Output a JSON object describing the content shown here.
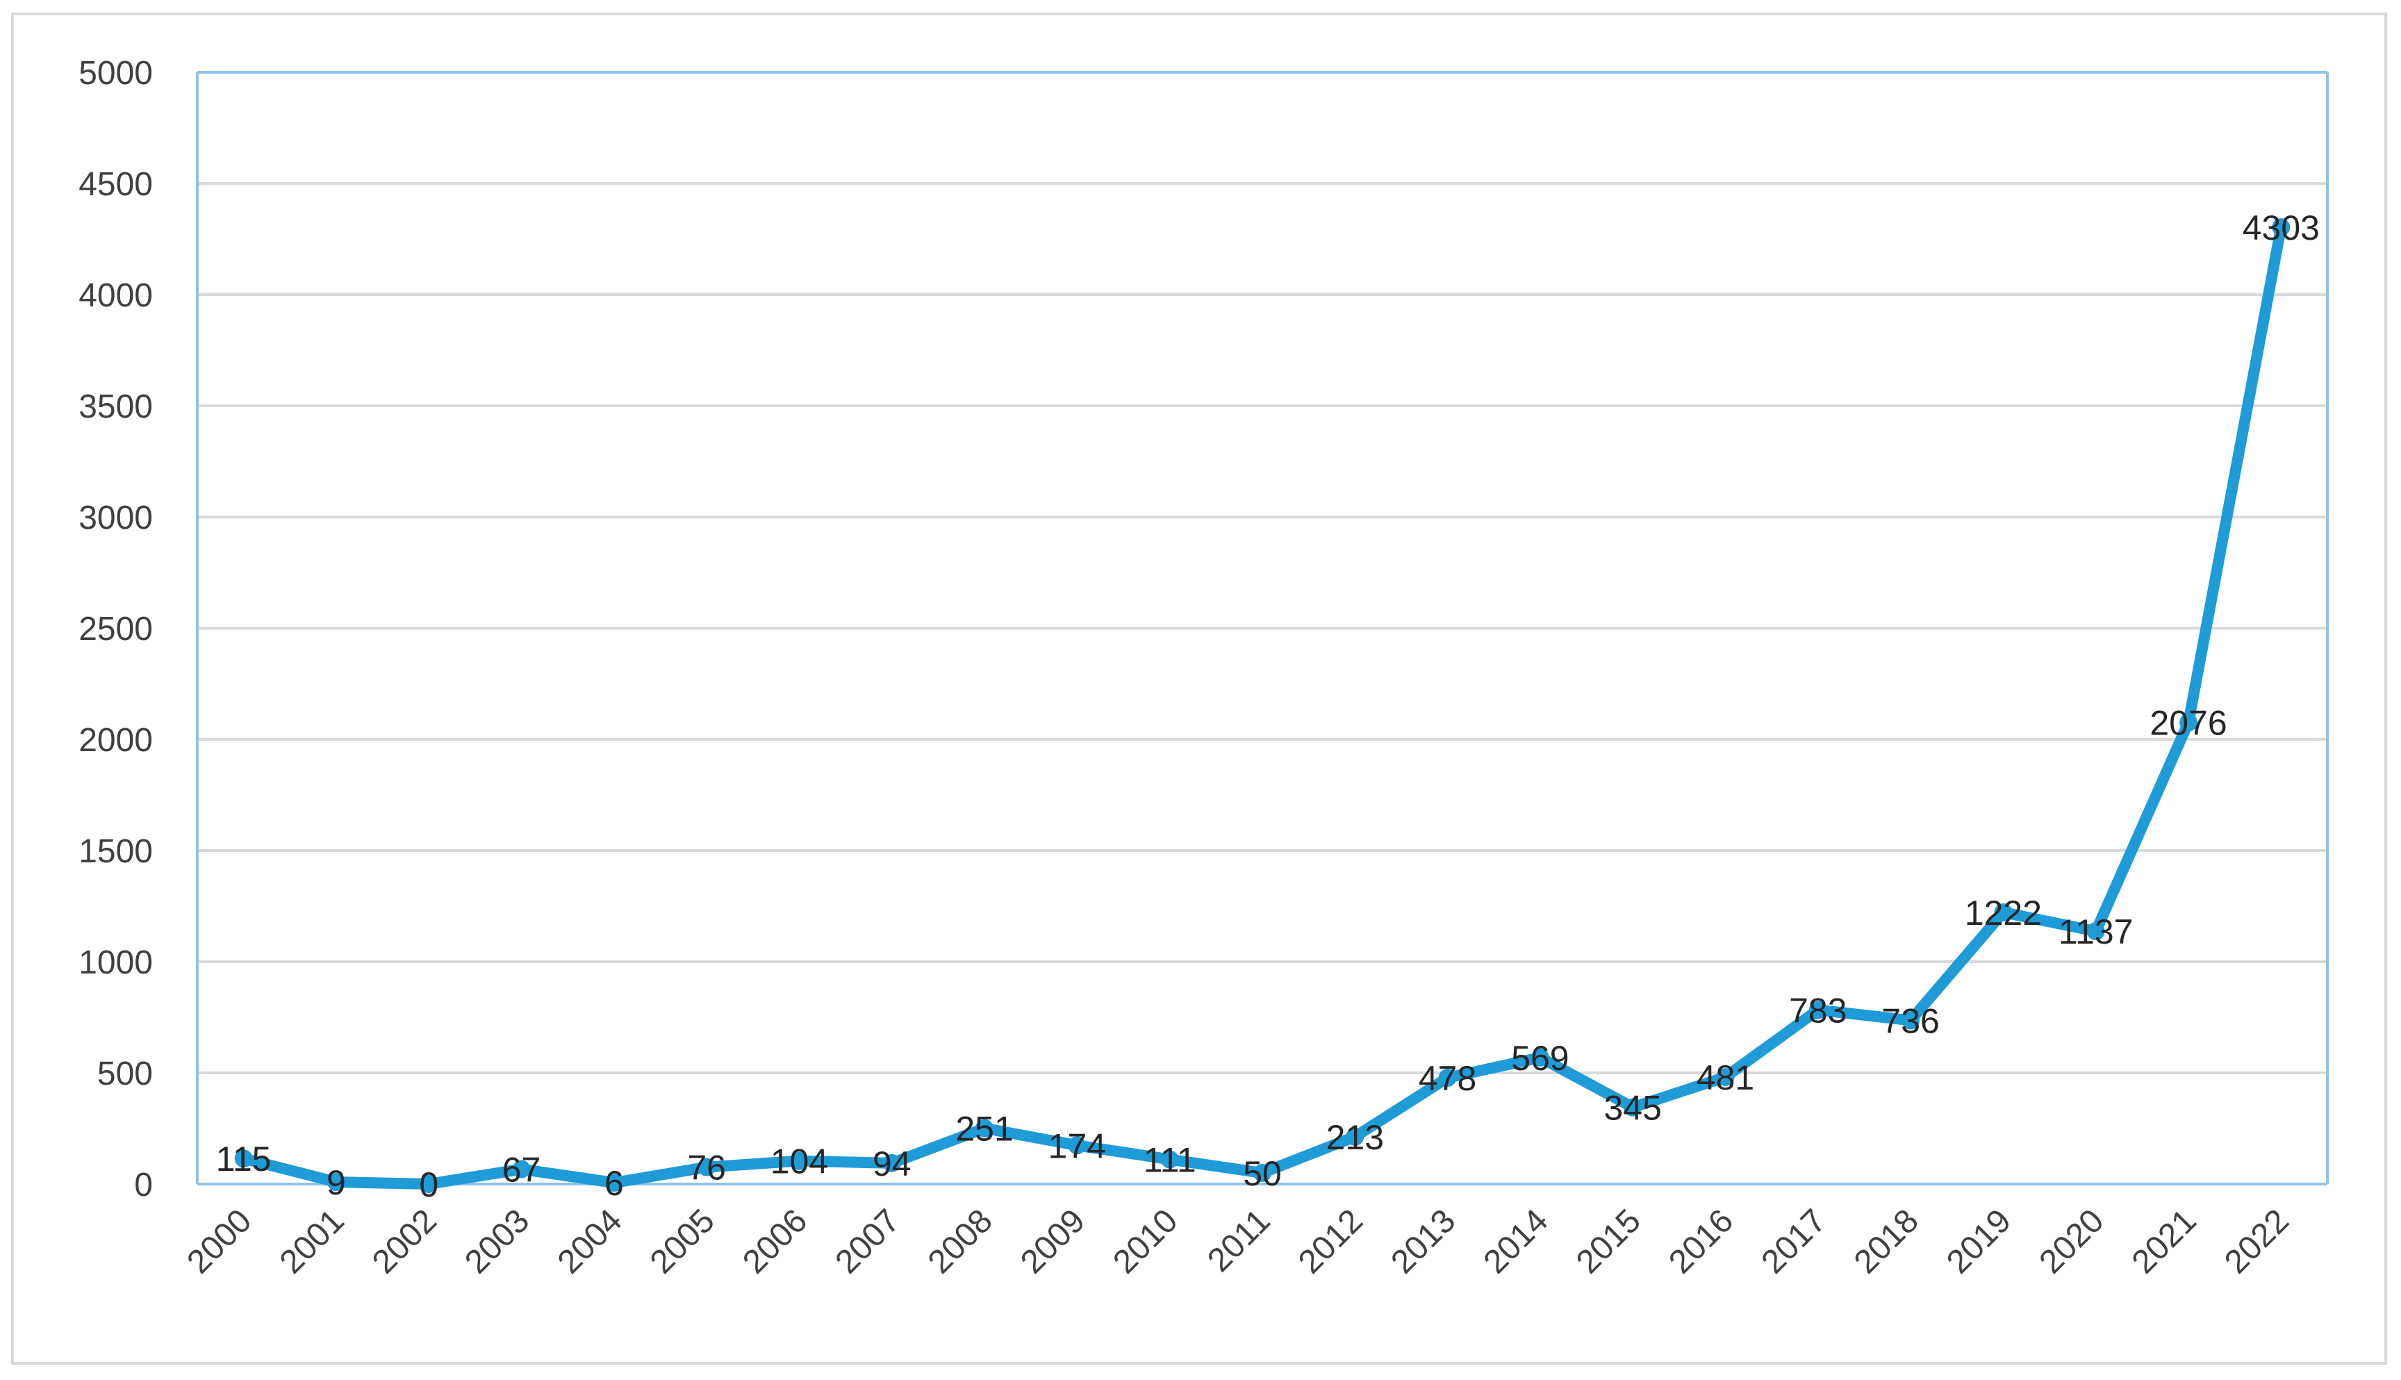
{
  "chart_data": {
    "type": "line",
    "title": "",
    "xlabel": "",
    "ylabel": "",
    "categories": [
      "2000",
      "2001",
      "2002",
      "2003",
      "2004",
      "2005",
      "2006",
      "2007",
      "2008",
      "2009",
      "2010",
      "2011",
      "2012",
      "2013",
      "2014",
      "2015",
      "2016",
      "2017",
      "2018",
      "2019",
      "2020",
      "2021",
      "2022"
    ],
    "series": [
      {
        "values": [
          115,
          9,
          0,
          67,
          6,
          76,
          104,
          94,
          251,
          174,
          111,
          50,
          213,
          478,
          569,
          345,
          481,
          783,
          736,
          1222,
          1137,
          2076,
          4303
        ]
      }
    ],
    "ylim": [
      0,
      5000
    ],
    "yticks": [
      "0",
      "500",
      "1000",
      "1500",
      "2000",
      "2500",
      "3000",
      "3500",
      "4000",
      "4500",
      "5000"
    ],
    "grid": "horizontal",
    "data_labels": true,
    "legend": "none",
    "colors": {
      "line": "#1f9bd7",
      "grid": "#d9d9d9",
      "axis": "#8fc3ea",
      "frame": "#d9d9d9",
      "tick_text": "#404040",
      "label_text": "#262626"
    }
  }
}
